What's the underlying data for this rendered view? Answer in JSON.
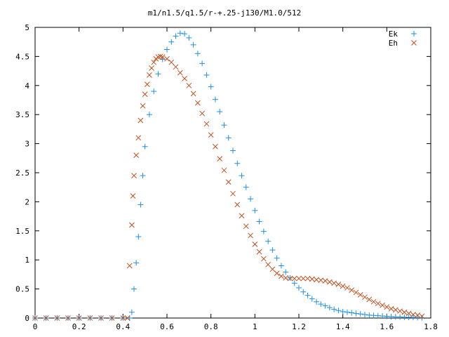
{
  "chart_data": {
    "type": "scatter",
    "title": "m1/n1.5/q1.5/r-+.25-j130/M1.0/512",
    "xlabel": "",
    "ylabel": "",
    "xlim": [
      0,
      1.8
    ],
    "ylim": [
      0,
      5
    ],
    "x_ticks": [
      "0",
      "0.2",
      "0.4",
      "0.6",
      "0.8",
      "1",
      "1.2",
      "1.4",
      "1.6",
      "1.8"
    ],
    "y_ticks": [
      "0",
      "0.5",
      "1",
      "1.5",
      "2",
      "2.5",
      "3",
      "3.5",
      "4",
      "4.5",
      "5"
    ],
    "grid": false,
    "legend_position": "top-right",
    "series": [
      {
        "name": "Ek",
        "marker": "plus",
        "color": "#1e90e6",
        "points": [
          [
            0.0,
            0
          ],
          [
            0.05,
            0
          ],
          [
            0.1,
            0
          ],
          [
            0.15,
            0
          ],
          [
            0.2,
            0
          ],
          [
            0.25,
            0
          ],
          [
            0.3,
            0
          ],
          [
            0.35,
            0
          ],
          [
            0.4,
            0
          ],
          [
            0.43,
            0
          ],
          [
            0.44,
            0.1
          ],
          [
            0.45,
            0.5
          ],
          [
            0.46,
            0.95
          ],
          [
            0.47,
            1.4
          ],
          [
            0.48,
            1.95
          ],
          [
            0.49,
            2.45
          ],
          [
            0.5,
            2.95
          ],
          [
            0.52,
            3.5
          ],
          [
            0.54,
            3.9
          ],
          [
            0.56,
            4.2
          ],
          [
            0.58,
            4.45
          ],
          [
            0.6,
            4.62
          ],
          [
            0.62,
            4.75
          ],
          [
            0.64,
            4.85
          ],
          [
            0.66,
            4.9
          ],
          [
            0.68,
            4.89
          ],
          [
            0.7,
            4.82
          ],
          [
            0.72,
            4.7
          ],
          [
            0.74,
            4.55
          ],
          [
            0.76,
            4.38
          ],
          [
            0.78,
            4.18
          ],
          [
            0.8,
            3.98
          ],
          [
            0.82,
            3.76
          ],
          [
            0.84,
            3.55
          ],
          [
            0.86,
            3.32
          ],
          [
            0.88,
            3.1
          ],
          [
            0.9,
            2.88
          ],
          [
            0.92,
            2.66
          ],
          [
            0.94,
            2.45
          ],
          [
            0.96,
            2.25
          ],
          [
            0.98,
            2.05
          ],
          [
            1.0,
            1.85
          ],
          [
            1.02,
            1.66
          ],
          [
            1.04,
            1.49
          ],
          [
            1.06,
            1.32
          ],
          [
            1.08,
            1.17
          ],
          [
            1.1,
            1.03
          ],
          [
            1.12,
            0.9
          ],
          [
            1.14,
            0.79
          ],
          [
            1.16,
            0.69
          ],
          [
            1.18,
            0.6
          ],
          [
            1.2,
            0.52
          ],
          [
            1.22,
            0.45
          ],
          [
            1.24,
            0.39
          ],
          [
            1.26,
            0.33
          ],
          [
            1.28,
            0.28
          ],
          [
            1.3,
            0.24
          ],
          [
            1.32,
            0.21
          ],
          [
            1.34,
            0.18
          ],
          [
            1.36,
            0.15
          ],
          [
            1.38,
            0.13
          ],
          [
            1.4,
            0.11
          ],
          [
            1.42,
            0.1
          ],
          [
            1.44,
            0.09
          ],
          [
            1.46,
            0.08
          ],
          [
            1.48,
            0.07
          ],
          [
            1.5,
            0.06
          ],
          [
            1.52,
            0.05
          ],
          [
            1.54,
            0.045
          ],
          [
            1.56,
            0.04
          ],
          [
            1.58,
            0.035
          ],
          [
            1.6,
            0.03
          ],
          [
            1.62,
            0.025
          ],
          [
            1.64,
            0.02
          ],
          [
            1.66,
            0.018
          ],
          [
            1.68,
            0.015
          ],
          [
            1.7,
            0.012
          ],
          [
            1.72,
            0.01
          ],
          [
            1.74,
            0.008
          ],
          [
            1.76,
            0.005
          ]
        ]
      },
      {
        "name": "Eh",
        "marker": "cross",
        "color": "#c0501e",
        "points": [
          [
            0.0,
            0
          ],
          [
            0.05,
            0
          ],
          [
            0.1,
            0
          ],
          [
            0.15,
            0
          ],
          [
            0.2,
            0
          ],
          [
            0.25,
            0
          ],
          [
            0.3,
            0
          ],
          [
            0.35,
            0
          ],
          [
            0.4,
            0
          ],
          [
            0.42,
            0
          ],
          [
            0.43,
            0.9
          ],
          [
            0.44,
            1.6
          ],
          [
            0.445,
            2.1
          ],
          [
            0.45,
            2.45
          ],
          [
            0.46,
            2.8
          ],
          [
            0.47,
            3.1
          ],
          [
            0.48,
            3.4
          ],
          [
            0.49,
            3.65
          ],
          [
            0.5,
            3.85
          ],
          [
            0.51,
            4.02
          ],
          [
            0.52,
            4.18
          ],
          [
            0.53,
            4.3
          ],
          [
            0.54,
            4.4
          ],
          [
            0.55,
            4.46
          ],
          [
            0.56,
            4.49
          ],
          [
            0.57,
            4.5
          ],
          [
            0.58,
            4.49
          ],
          [
            0.6,
            4.46
          ],
          [
            0.62,
            4.4
          ],
          [
            0.64,
            4.32
          ],
          [
            0.66,
            4.22
          ],
          [
            0.68,
            4.12
          ],
          [
            0.7,
            4.0
          ],
          [
            0.72,
            3.86
          ],
          [
            0.74,
            3.7
          ],
          [
            0.76,
            3.52
          ],
          [
            0.78,
            3.34
          ],
          [
            0.8,
            3.15
          ],
          [
            0.82,
            2.95
          ],
          [
            0.84,
            2.74
          ],
          [
            0.86,
            2.54
          ],
          [
            0.88,
            2.34
          ],
          [
            0.9,
            2.14
          ],
          [
            0.92,
            1.95
          ],
          [
            0.94,
            1.76
          ],
          [
            0.96,
            1.58
          ],
          [
            0.98,
            1.42
          ],
          [
            1.0,
            1.27
          ],
          [
            1.02,
            1.14
          ],
          [
            1.04,
            1.02
          ],
          [
            1.06,
            0.92
          ],
          [
            1.08,
            0.84
          ],
          [
            1.1,
            0.77
          ],
          [
            1.12,
            0.72
          ],
          [
            1.14,
            0.69
          ],
          [
            1.16,
            0.68
          ],
          [
            1.18,
            0.68
          ],
          [
            1.2,
            0.68
          ],
          [
            1.22,
            0.68
          ],
          [
            1.24,
            0.68
          ],
          [
            1.26,
            0.67
          ],
          [
            1.28,
            0.66
          ],
          [
            1.3,
            0.65
          ],
          [
            1.32,
            0.64
          ],
          [
            1.34,
            0.62
          ],
          [
            1.36,
            0.6
          ],
          [
            1.38,
            0.58
          ],
          [
            1.4,
            0.55
          ],
          [
            1.42,
            0.52
          ],
          [
            1.44,
            0.48
          ],
          [
            1.46,
            0.44
          ],
          [
            1.48,
            0.4
          ],
          [
            1.5,
            0.36
          ],
          [
            1.52,
            0.32
          ],
          [
            1.54,
            0.28
          ],
          [
            1.56,
            0.25
          ],
          [
            1.58,
            0.22
          ],
          [
            1.6,
            0.19
          ],
          [
            1.62,
            0.16
          ],
          [
            1.64,
            0.14
          ],
          [
            1.66,
            0.12
          ],
          [
            1.68,
            0.1
          ],
          [
            1.7,
            0.08
          ],
          [
            1.72,
            0.06
          ],
          [
            1.74,
            0.05
          ],
          [
            1.76,
            0.03
          ]
        ]
      }
    ]
  }
}
